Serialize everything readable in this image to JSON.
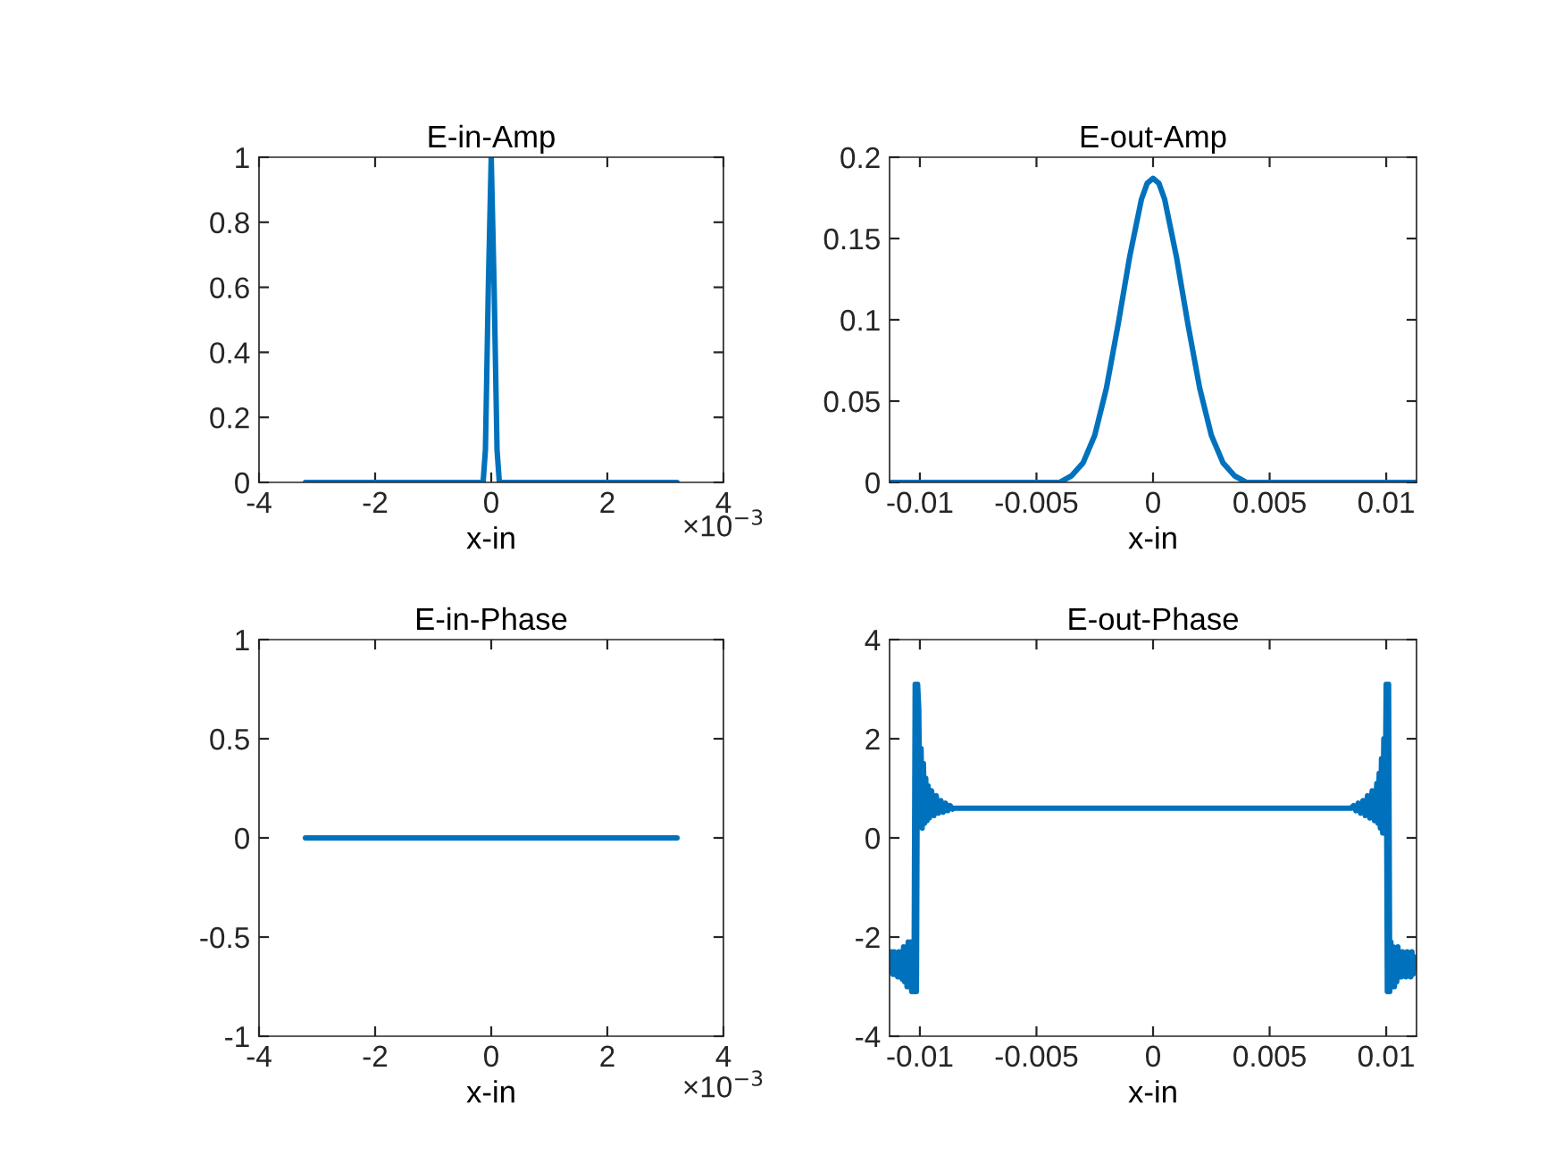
{
  "chart_data": [
    {
      "type": "line",
      "title": "E-in-Amp",
      "xlabel": "x-in",
      "xlim": [
        -4,
        4
      ],
      "xticks": [
        -4,
        -2,
        0,
        2,
        4
      ],
      "ylim": [
        0,
        1
      ],
      "yticks": [
        0,
        0.2,
        0.4,
        0.6,
        0.8,
        1
      ],
      "annotations": [
        "×10$^{−3}$"
      ],
      "grid": false,
      "series": [
        {
          "color": "#0072bd",
          "x": [
            -3.2,
            -0.14,
            -0.1,
            -0.05,
            0,
            0.05,
            0.1,
            0.14,
            3.2
          ],
          "values": [
            0,
            0,
            0.1,
            0.6,
            1,
            0.6,
            0.1,
            0,
            0
          ]
        }
      ]
    },
    {
      "type": "line",
      "title": "E-out-Amp",
      "xlabel": "x-in",
      "xlim": [
        -0.0113,
        0.0113
      ],
      "xticks": [
        -0.01,
        -0.005,
        0,
        0.005,
        0.01
      ],
      "ylim": [
        0,
        0.2
      ],
      "yticks": [
        0,
        0.05,
        0.1,
        0.15,
        0.2
      ],
      "grid": false,
      "series": [
        {
          "color": "#0072bd",
          "x": [
            -0.0113,
            -0.004,
            -0.0035,
            -0.003,
            -0.0025,
            -0.002,
            -0.0015,
            -0.001,
            -0.0005,
            -0.00025,
            0,
            0.00025,
            0.0005,
            0.001,
            0.0015,
            0.002,
            0.0025,
            0.003,
            0.0035,
            0.004,
            0.0113
          ],
          "values": [
            0,
            0,
            0.004,
            0.012,
            0.029,
            0.058,
            0.097,
            0.139,
            0.174,
            0.184,
            0.187,
            0.184,
            0.174,
            0.139,
            0.097,
            0.058,
            0.029,
            0.012,
            0.004,
            0,
            0
          ]
        }
      ]
    },
    {
      "type": "line",
      "title": "E-in-Phase",
      "xlabel": "x-in",
      "xlim": [
        -4,
        4
      ],
      "xticks": [
        -4,
        -2,
        0,
        2,
        4
      ],
      "ylim": [
        -1,
        1
      ],
      "yticks": [
        -1,
        -0.5,
        0,
        0.5,
        1
      ],
      "annotations": [
        "×10$^{−3}$"
      ],
      "grid": false,
      "series": [
        {
          "color": "#0072bd",
          "x": [
            -3.2,
            3.2
          ],
          "values": [
            0,
            0
          ]
        }
      ]
    },
    {
      "type": "line",
      "title": "E-out-Phase",
      "xlabel": "x-in",
      "xlim": [
        -0.0113,
        0.0113
      ],
      "xticks": [
        -0.01,
        -0.005,
        0,
        0.005,
        0.01
      ],
      "ylim": [
        -4,
        4
      ],
      "yticks": [
        -4,
        -2,
        0,
        2,
        4
      ],
      "grid": false,
      "series": [
        {
          "color": "#0072bd",
          "x": [
            -0.0113,
            -0.01125,
            -0.0112,
            -0.01115,
            -0.0111,
            -0.01105,
            -0.011,
            -0.01095,
            -0.0109,
            -0.01085,
            -0.0108,
            -0.01075,
            -0.0107,
            -0.01065,
            -0.0106,
            -0.01055,
            -0.0105,
            -0.01045,
            -0.0104,
            -0.01035,
            -0.0103,
            -0.01025,
            -0.0102,
            -0.01015,
            -0.0101,
            -0.01005,
            -0.01,
            -0.00995,
            -0.0099,
            -0.00985,
            -0.0098,
            -0.00975,
            -0.0097,
            -0.00965,
            -0.0096,
            -0.0095,
            -0.0094,
            -0.0093,
            -0.0092,
            -0.0091,
            -0.009,
            -0.0089,
            -0.0088,
            -0.0087,
            -0.0086,
            -0.0085,
            0.0085,
            0.0086,
            0.0087,
            0.0088,
            0.0089,
            0.009,
            0.0091,
            0.0092,
            0.0093,
            0.0094,
            0.0095,
            0.0096,
            0.00965,
            0.0097,
            0.00975,
            0.0098,
            0.00985,
            0.0099,
            0.00995,
            0.01,
            0.01005,
            0.0101,
            0.01015,
            0.0102,
            0.01025,
            0.0103,
            0.01035,
            0.0104,
            0.01045,
            0.0105,
            0.01055,
            0.0106,
            0.01065,
            0.0107,
            0.01075,
            0.0108,
            0.01085,
            0.0109,
            0.01095,
            0.011,
            0.01105,
            0.0111,
            0.01115,
            0.0112,
            0.01125,
            0.0113
          ],
          "values": [
            -2.4,
            -2.7,
            -2.3,
            -2.75,
            -2.3,
            -2.75,
            -2.35,
            -2.8,
            -2.3,
            -2.8,
            -2.3,
            -2.85,
            -2.2,
            -2.9,
            -2.2,
            -3.0,
            -2.1,
            -3.0,
            -2.1,
            -3.1,
            -2.1,
            -3.1,
            3.1,
            -3.1,
            3.1,
            2.6,
            0.3,
            1.8,
            0.2,
            1.5,
            0.3,
            1.2,
            0.35,
            1.05,
            0.4,
            0.95,
            0.45,
            0.85,
            0.5,
            0.75,
            0.52,
            0.7,
            0.55,
            0.65,
            0.58,
            0.6,
            0.6,
            0.65,
            0.55,
            0.7,
            0.5,
            0.75,
            0.45,
            0.85,
            0.4,
            0.95,
            0.35,
            1.1,
            0.3,
            1.3,
            0.2,
            1.6,
            0.1,
            2.0,
            0.1,
            3.1,
            -3.1,
            3.1,
            -3.1,
            -2.1,
            -3.0,
            -2.2,
            -3.0,
            -2.3,
            -2.9,
            -2.2,
            -2.8,
            -2.3,
            -2.8,
            -2.3,
            -2.75,
            -2.35,
            -2.8,
            -2.3,
            -2.7,
            -2.4,
            -2.8,
            -2.3,
            -2.75,
            -2.4,
            -2.6,
            -2.5
          ]
        }
      ]
    }
  ]
}
